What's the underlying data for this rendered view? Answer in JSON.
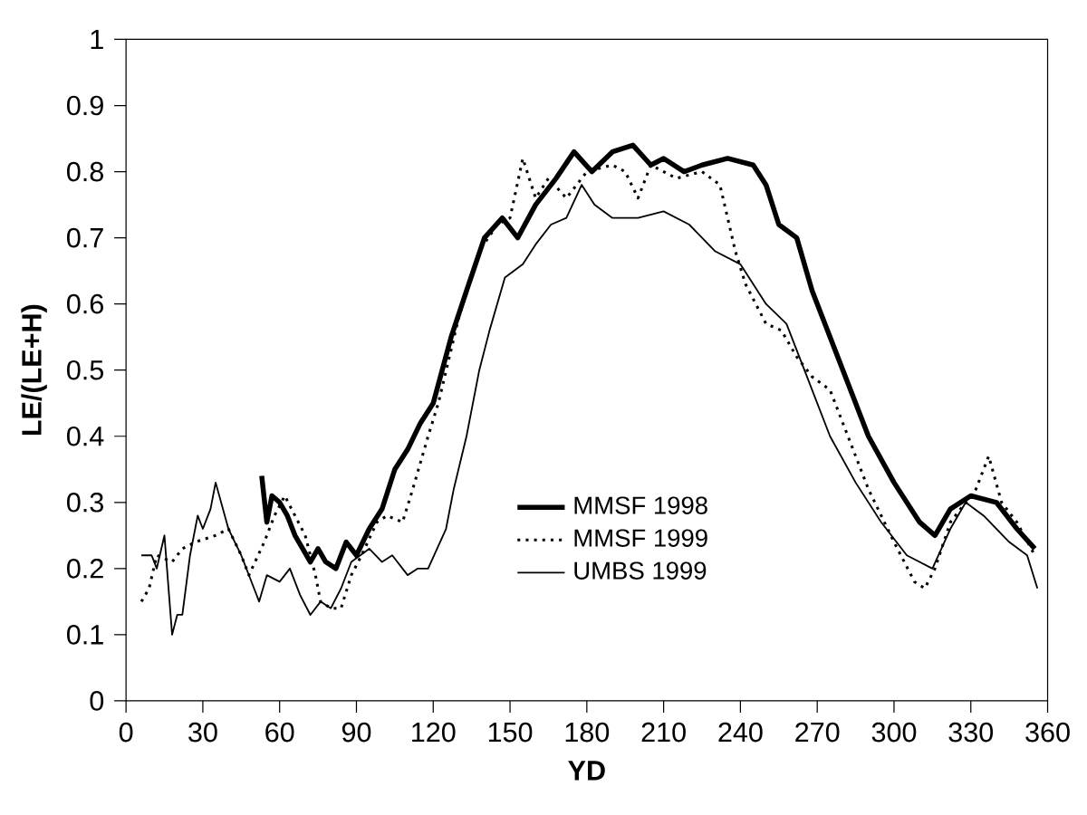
{
  "chart_data": {
    "type": "line",
    "xlabel": "YD",
    "ylabel": "LE/(LE+H)",
    "xlim": [
      0,
      360
    ],
    "ylim": [
      0,
      1
    ],
    "xticks": [
      0,
      30,
      60,
      90,
      120,
      150,
      180,
      210,
      240,
      270,
      300,
      330,
      360
    ],
    "yticks": [
      0,
      0.1,
      0.2,
      0.3,
      0.4,
      0.5,
      0.6,
      0.7,
      0.8,
      0.9,
      1
    ],
    "grid": false,
    "legend": "bottom",
    "marker": "none",
    "series": [
      {
        "name": "MMSF 1998",
        "color": "#000000",
        "line_style": "solid",
        "x": [
          53,
          55,
          57,
          60,
          63,
          66,
          69,
          72,
          75,
          78,
          82,
          86,
          90,
          95,
          100,
          105,
          110,
          115,
          120,
          127,
          133,
          140,
          147,
          153,
          160,
          168,
          175,
          182,
          190,
          198,
          205,
          210,
          218,
          225,
          235,
          245,
          250,
          255,
          262,
          268,
          275,
          282,
          290,
          300,
          310,
          316,
          322,
          330,
          340,
          348,
          355
        ],
        "values": [
          0.34,
          0.27,
          0.31,
          0.3,
          0.28,
          0.25,
          0.23,
          0.21,
          0.23,
          0.21,
          0.2,
          0.24,
          0.22,
          0.26,
          0.29,
          0.35,
          0.38,
          0.42,
          0.45,
          0.55,
          0.62,
          0.7,
          0.73,
          0.7,
          0.75,
          0.79,
          0.83,
          0.8,
          0.83,
          0.84,
          0.81,
          0.82,
          0.8,
          0.81,
          0.82,
          0.81,
          0.78,
          0.72,
          0.7,
          0.62,
          0.55,
          0.48,
          0.4,
          0.33,
          0.27,
          0.25,
          0.29,
          0.31,
          0.3,
          0.26,
          0.23
        ]
      },
      {
        "name": "MMSF 1999",
        "color": "#000000",
        "line_style": "dotted",
        "x": [
          6,
          9,
          12,
          18,
          22,
          27,
          35,
          40,
          45,
          48,
          54,
          58,
          62,
          66,
          70,
          74,
          76,
          80,
          84,
          88,
          92,
          98,
          102,
          108,
          112,
          118,
          122,
          130,
          138,
          145,
          150,
          155,
          160,
          165,
          172,
          180,
          190,
          195,
          200,
          205,
          215,
          225,
          232,
          238,
          242,
          250,
          256,
          262,
          268,
          275,
          282,
          290,
          300,
          308,
          312,
          316,
          322,
          328,
          332,
          337,
          342,
          348,
          355
        ],
        "values": [
          0.15,
          0.17,
          0.22,
          0.21,
          0.23,
          0.24,
          0.25,
          0.26,
          0.22,
          0.19,
          0.24,
          0.28,
          0.31,
          0.28,
          0.25,
          0.19,
          0.15,
          0.14,
          0.14,
          0.19,
          0.22,
          0.27,
          0.28,
          0.27,
          0.32,
          0.4,
          0.45,
          0.58,
          0.68,
          0.72,
          0.73,
          0.82,
          0.76,
          0.79,
          0.76,
          0.8,
          0.81,
          0.8,
          0.76,
          0.81,
          0.79,
          0.8,
          0.78,
          0.68,
          0.63,
          0.57,
          0.56,
          0.52,
          0.49,
          0.47,
          0.4,
          0.32,
          0.24,
          0.18,
          0.17,
          0.2,
          0.27,
          0.3,
          0.32,
          0.37,
          0.3,
          0.27,
          0.22
        ]
      },
      {
        "name": "UMBS 1999",
        "color": "#000000",
        "line_style": "solid",
        "x": [
          6,
          10,
          12,
          15,
          17,
          18,
          20,
          22,
          25,
          28,
          30,
          33,
          35,
          40,
          45,
          50,
          52,
          55,
          60,
          64,
          68,
          72,
          76,
          80,
          84,
          88,
          95,
          100,
          104,
          110,
          114,
          118,
          125,
          128,
          133,
          138,
          142,
          148,
          155,
          160,
          166,
          172,
          178,
          183,
          190,
          200,
          210,
          220,
          230,
          240,
          250,
          258,
          265,
          275,
          285,
          295,
          305,
          315,
          322,
          328,
          335,
          345,
          352,
          356
        ],
        "values": [
          0.22,
          0.22,
          0.2,
          0.25,
          0.15,
          0.1,
          0.13,
          0.13,
          0.22,
          0.28,
          0.26,
          0.29,
          0.33,
          0.26,
          0.22,
          0.17,
          0.15,
          0.19,
          0.18,
          0.2,
          0.16,
          0.13,
          0.15,
          0.14,
          0.17,
          0.21,
          0.23,
          0.21,
          0.22,
          0.19,
          0.2,
          0.2,
          0.26,
          0.32,
          0.4,
          0.5,
          0.56,
          0.64,
          0.66,
          0.69,
          0.72,
          0.73,
          0.78,
          0.75,
          0.73,
          0.73,
          0.74,
          0.72,
          0.68,
          0.66,
          0.6,
          0.57,
          0.5,
          0.4,
          0.33,
          0.27,
          0.22,
          0.2,
          0.26,
          0.3,
          0.28,
          0.24,
          0.22,
          0.17
        ]
      }
    ]
  }
}
